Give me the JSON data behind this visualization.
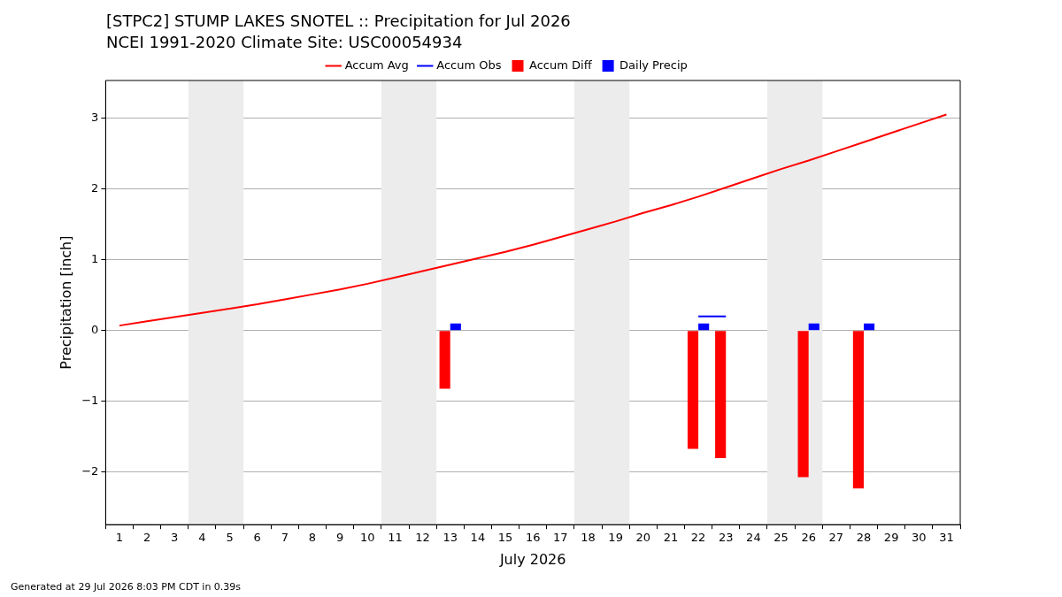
{
  "chart_data": {
    "type": "bar",
    "title": "[STPC2] STUMP LAKES SNOTEL :: Precipitation for Jul 2026",
    "subtitle": "NCEI 1991-2020 Climate Site: USC00054934",
    "xlabel": "July 2026",
    "ylabel": "Precipitation [inch]",
    "x": [
      1,
      2,
      3,
      4,
      5,
      6,
      7,
      8,
      9,
      10,
      11,
      12,
      13,
      14,
      15,
      16,
      17,
      18,
      19,
      20,
      21,
      22,
      23,
      24,
      25,
      26,
      27,
      28,
      29,
      30,
      31
    ],
    "series": [
      {
        "name": "Accum Avg",
        "type": "line",
        "color": "#ff0000",
        "values": [
          0.07,
          0.13,
          0.19,
          0.25,
          0.31,
          0.37,
          0.44,
          0.51,
          0.58,
          0.66,
          0.75,
          0.84,
          0.93,
          1.02,
          1.11,
          1.21,
          1.32,
          1.43,
          1.54,
          1.66,
          1.77,
          1.89,
          2.02,
          2.15,
          2.28,
          2.4,
          2.53,
          2.66,
          2.79,
          2.92,
          3.05
        ]
      },
      {
        "name": "Accum Obs",
        "type": "line",
        "color": "#0000ff",
        "values": [
          null,
          null,
          null,
          null,
          null,
          null,
          null,
          null,
          null,
          null,
          null,
          null,
          null,
          null,
          null,
          null,
          null,
          null,
          null,
          null,
          null,
          0.2,
          0.2,
          null,
          null,
          null,
          null,
          null,
          null,
          null,
          null
        ]
      },
      {
        "name": "Accum Diff",
        "color": "#ff0000",
        "values": [
          null,
          null,
          null,
          null,
          null,
          null,
          null,
          null,
          null,
          null,
          null,
          null,
          -0.82,
          null,
          null,
          null,
          null,
          null,
          null,
          null,
          null,
          -1.67,
          -1.8,
          null,
          null,
          -2.07,
          null,
          -2.23,
          null,
          null,
          null
        ]
      },
      {
        "name": "Daily Precip",
        "color": "#0000ff",
        "values": [
          null,
          null,
          null,
          null,
          null,
          null,
          null,
          null,
          null,
          null,
          null,
          null,
          0.1,
          null,
          null,
          null,
          null,
          null,
          null,
          null,
          null,
          0.1,
          null,
          null,
          null,
          0.1,
          null,
          0.1,
          null,
          null,
          null
        ]
      }
    ],
    "xlim": [
      0.5,
      31.5
    ],
    "xticks": [
      1,
      2,
      3,
      4,
      5,
      6,
      7,
      8,
      9,
      10,
      11,
      12,
      13,
      14,
      15,
      16,
      17,
      18,
      19,
      20,
      21,
      22,
      23,
      24,
      25,
      26,
      27,
      28,
      29,
      30,
      31
    ],
    "ylim": [
      -2.74,
      3.53
    ],
    "yticks": [
      {
        "value": -2,
        "label": "−2"
      },
      {
        "value": -1,
        "label": "−1"
      },
      0,
      1,
      2,
      3
    ],
    "bands": [
      {
        "axis": "x",
        "from": 3.5,
        "to": 5.5,
        "color": "#ececec"
      },
      {
        "axis": "x",
        "from": 10.5,
        "to": 12.5,
        "color": "#ececec"
      },
      {
        "axis": "x",
        "from": 17.5,
        "to": 19.5,
        "color": "#ececec"
      },
      {
        "axis": "x",
        "from": 24.5,
        "to": 26.5,
        "color": "#ececec"
      }
    ],
    "grid": "y",
    "legend": "top",
    "annotations": [
      "Generated at 29 Jul 2026 8:03 PM CDT in 0.39s"
    ]
  }
}
